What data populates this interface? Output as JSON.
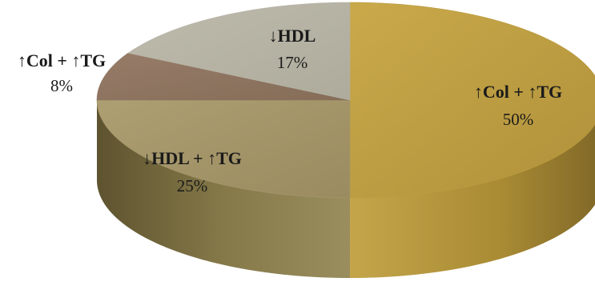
{
  "chart_data": {
    "type": "pie",
    "title": "",
    "slices": [
      {
        "label": "↑Col + ↑TG",
        "value": 50,
        "display": "50%",
        "color": "#b99a3c"
      },
      {
        "label": "↓HDL + ↑TG",
        "value": 25,
        "display": "25%",
        "color": "#a4966b"
      },
      {
        "label": "↑Col + ↑TG",
        "value": 8,
        "display": "8%",
        "color": "#8e7561"
      },
      {
        "label": "↓HDL",
        "value": 17,
        "display": "17%",
        "color": "#b6b3a5"
      }
    ],
    "legend": "none"
  }
}
